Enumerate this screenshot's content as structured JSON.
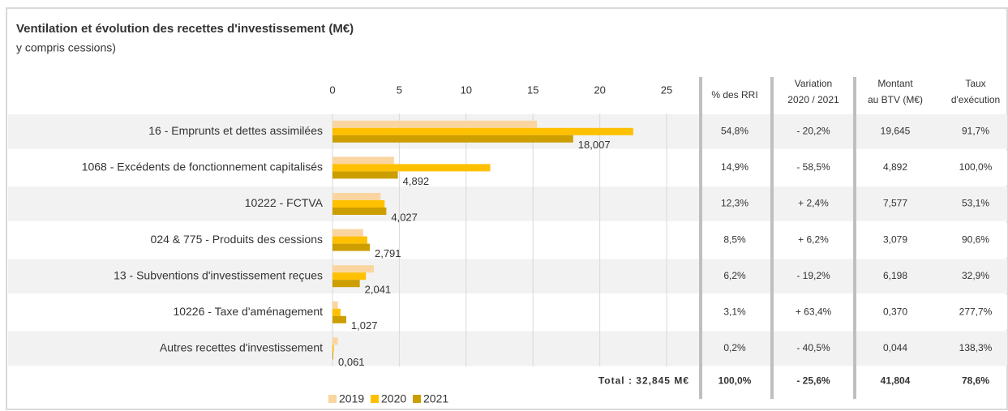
{
  "chart_data": {
    "type": "bar",
    "orientation": "horizontal",
    "title": "Ventilation et évolution des recettes d'investissement (M€)",
    "subtitle": "y compris cessions)",
    "categories": [
      "16 - Emprunts et dettes assimilées",
      "1068 - Excédents de fonctionnement capitalisés",
      "10222 - FCTVA",
      "024 & 775 - Produits des cessions",
      "13 - Subventions d'investissement reçues",
      "10226 - Taxe d'aménagement",
      "Autres recettes d'investissement"
    ],
    "series": [
      {
        "name": "2019",
        "color": "#fbd5a0",
        "values": [
          15.3,
          4.6,
          3.6,
          2.3,
          3.1,
          0.4,
          0.4
        ]
      },
      {
        "name": "2020",
        "color": "#ffc000",
        "values": [
          22.5,
          11.8,
          3.9,
          2.6,
          2.5,
          0.6,
          0.1
        ]
      },
      {
        "name": "2021",
        "color": "#cc9e00",
        "values": [
          18.007,
          4.892,
          4.027,
          2.791,
          2.041,
          1.027,
          0.061
        ],
        "value_labels": [
          "18,007",
          "4,892",
          "4,027",
          "2,791",
          "2,041",
          "1,027",
          "0,061"
        ]
      }
    ],
    "xlim": [
      0,
      27
    ],
    "xticks": [
      0,
      5,
      10,
      15,
      20,
      25
    ],
    "grid": true,
    "legend": "bottom"
  },
  "table": {
    "headers": [
      [
        "% des RRI"
      ],
      [
        "Variation",
        "2020 / 2021"
      ],
      [
        "Montant",
        "au BTV (M€)"
      ],
      [
        "Taux",
        "d'exécution"
      ]
    ],
    "rows": [
      [
        "54,8%",
        "- 20,2%",
        "19,645",
        "91,7%"
      ],
      [
        "14,9%",
        "- 58,5%",
        "4,892",
        "100,0%"
      ],
      [
        "12,3%",
        "+ 2,4%",
        "7,577",
        "53,1%"
      ],
      [
        "8,5%",
        "+ 6,2%",
        "3,079",
        "90,6%"
      ],
      [
        "6,2%",
        "- 19,2%",
        "6,198",
        "32,9%"
      ],
      [
        "3,1%",
        "+ 63,4%",
        "0,370",
        "277,7%"
      ],
      [
        "0,2%",
        "- 40,5%",
        "0,044",
        "138,3%"
      ]
    ],
    "total": {
      "label": "Total : 32,845 M€",
      "cells": [
        "100,0%",
        "- 25,6%",
        "41,804",
        "78,6%"
      ]
    }
  }
}
